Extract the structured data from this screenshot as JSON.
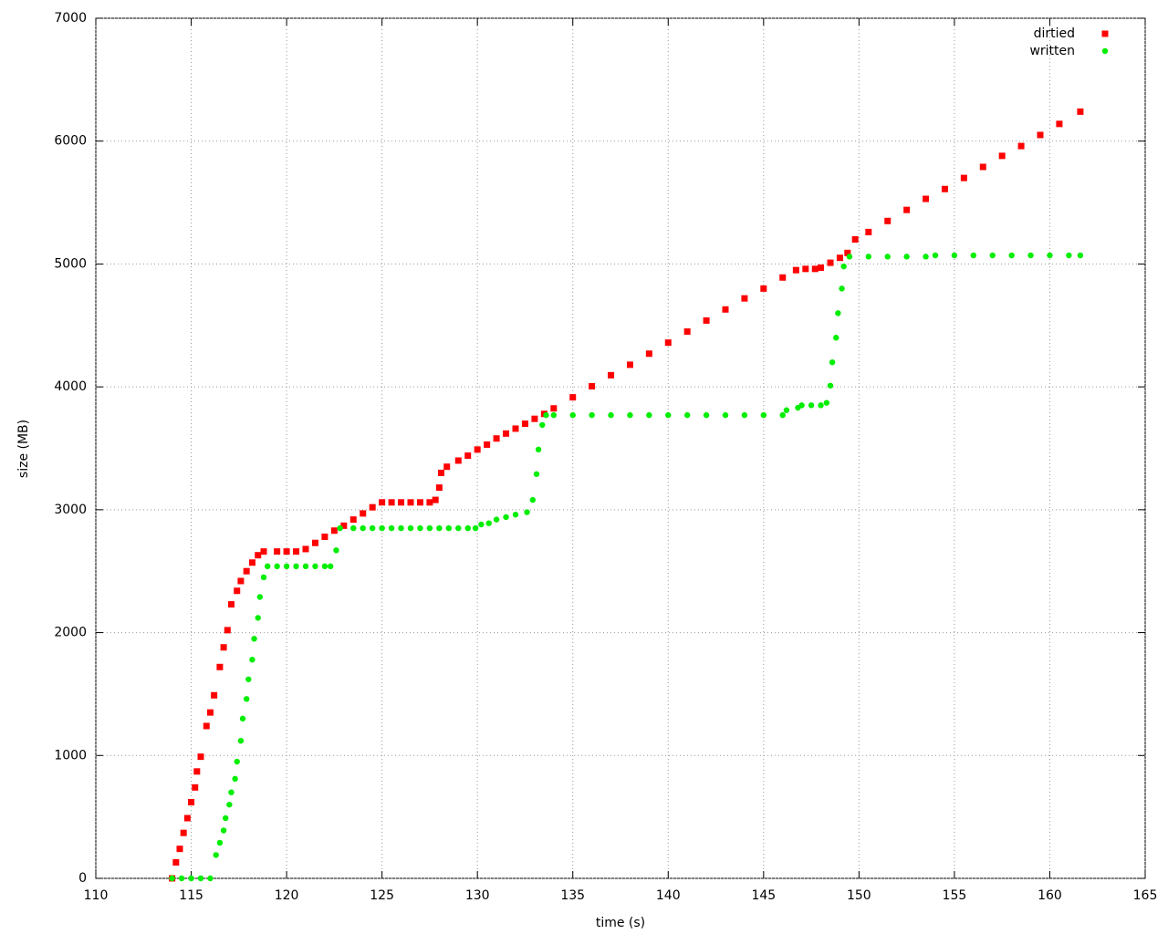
{
  "chart_data": {
    "type": "scatter",
    "xlabel": "time (s)",
    "ylabel": "size (MB)",
    "xlim": [
      110,
      165
    ],
    "xticks": [
      110,
      115,
      120,
      125,
      130,
      135,
      140,
      145,
      150,
      155,
      160,
      165
    ],
    "ylim": [
      0,
      7000
    ],
    "yticks": [
      0,
      1000,
      2000,
      3000,
      4000,
      5000,
      6000,
      7000
    ],
    "grid": true,
    "legend": "top-right",
    "series": [
      {
        "name": "dirtied",
        "color": "#ff0000",
        "marker": "square",
        "x": [
          114.0,
          114.2,
          114.4,
          114.6,
          114.8,
          115.0,
          115.2,
          115.3,
          115.5,
          115.8,
          116.0,
          116.2,
          116.5,
          116.7,
          116.9,
          117.1,
          117.4,
          117.6,
          117.9,
          118.2,
          118.5,
          118.8,
          119.5,
          120.0,
          120.5,
          121.0,
          121.5,
          122.0,
          122.5,
          123.0,
          123.5,
          124.0,
          124.5,
          125.0,
          125.5,
          126.0,
          126.5,
          127.0,
          127.5,
          127.8,
          128.0,
          128.1,
          128.4,
          129.0,
          129.5,
          130.0,
          130.5,
          131.0,
          131.5,
          132.0,
          132.5,
          133.0,
          133.5,
          134,
          135,
          136,
          137,
          138,
          139,
          140,
          141,
          142,
          143,
          144,
          145,
          146,
          146.7,
          147.2,
          147.7,
          148.0,
          148.5,
          149.0,
          149.4,
          149.8,
          150.5,
          151.5,
          152.5,
          153.5,
          154.5,
          155.5,
          156.5,
          157.5,
          158.5,
          159.5,
          160.5,
          161.6
        ],
        "values": [
          0,
          130,
          240,
          370,
          490,
          620,
          740,
          870,
          990,
          1240,
          1350,
          1490,
          1720,
          1880,
          2020,
          2230,
          2340,
          2420,
          2500,
          2570,
          2630,
          2660,
          2660,
          2660,
          2660,
          2680,
          2730,
          2780,
          2830,
          2870,
          2920,
          2970,
          3020,
          3060,
          3060,
          3060,
          3060,
          3060,
          3060,
          3080,
          3180,
          3300,
          3350,
          3400,
          3440,
          3490,
          3530,
          3580,
          3620,
          3660,
          3700,
          3740,
          3780,
          3825,
          3915,
          4005,
          4095,
          4180,
          4270,
          4360,
          4450,
          4540,
          4630,
          4720,
          4800,
          4890,
          4950,
          4960,
          4960,
          4970,
          5010,
          5050,
          5090,
          5200,
          5260,
          5350,
          5440,
          5530,
          5610,
          5700,
          5790,
          5880,
          5960,
          6050,
          6140,
          6240
        ]
      },
      {
        "name": "written",
        "color": "#00ee00",
        "marker": "circle",
        "x": [
          114.0,
          114.5,
          115.0,
          115.5,
          116.0,
          116.3,
          116.5,
          116.7,
          116.8,
          117.0,
          117.1,
          117.3,
          117.4,
          117.6,
          117.7,
          117.9,
          118.0,
          118.2,
          118.3,
          118.5,
          118.6,
          118.8,
          119.0,
          119.5,
          120.0,
          120.5,
          121.0,
          121.5,
          122.0,
          122.3,
          122.6,
          122.8,
          123.5,
          124.0,
          124.5,
          125.0,
          125.5,
          126.0,
          126.5,
          127.0,
          127.5,
          128.0,
          128.5,
          129.0,
          129.5,
          129.9,
          130.2,
          130.6,
          131.0,
          131.5,
          132.0,
          132.6,
          132.9,
          133.1,
          133.2,
          133.4,
          133.6,
          134,
          135,
          136,
          137,
          138,
          139,
          140,
          141,
          142,
          143,
          144,
          145,
          146.0,
          146.2,
          146.8,
          147.0,
          147.5,
          148.0,
          148.3,
          148.5,
          148.6,
          148.8,
          148.9,
          149.1,
          149.2,
          149.5,
          150.5,
          151.5,
          152.5,
          153.5,
          154.0,
          155,
          156,
          157,
          158,
          159,
          160,
          161,
          161.6
        ],
        "values": [
          0,
          0,
          0,
          0,
          0,
          190,
          290,
          390,
          490,
          600,
          700,
          810,
          950,
          1120,
          1300,
          1460,
          1620,
          1780,
          1950,
          2120,
          2290,
          2450,
          2540,
          2540,
          2540,
          2540,
          2540,
          2540,
          2540,
          2540,
          2670,
          2850,
          2850,
          2850,
          2850,
          2850,
          2850,
          2850,
          2850,
          2850,
          2850,
          2850,
          2850,
          2850,
          2850,
          2850,
          2880,
          2890,
          2920,
          2940,
          2960,
          2980,
          3080,
          3290,
          3490,
          3690,
          3770,
          3770,
          3770,
          3770,
          3770,
          3770,
          3770,
          3770,
          3770,
          3770,
          3770,
          3770,
          3770,
          3770,
          3810,
          3830,
          3850,
          3850,
          3850,
          3870,
          4010,
          4200,
          4400,
          4600,
          4800,
          4980,
          5060,
          5060,
          5060,
          5060,
          5060,
          5070,
          5070,
          5070,
          5070,
          5070,
          5070,
          5070,
          5070,
          5070
        ]
      }
    ]
  }
}
